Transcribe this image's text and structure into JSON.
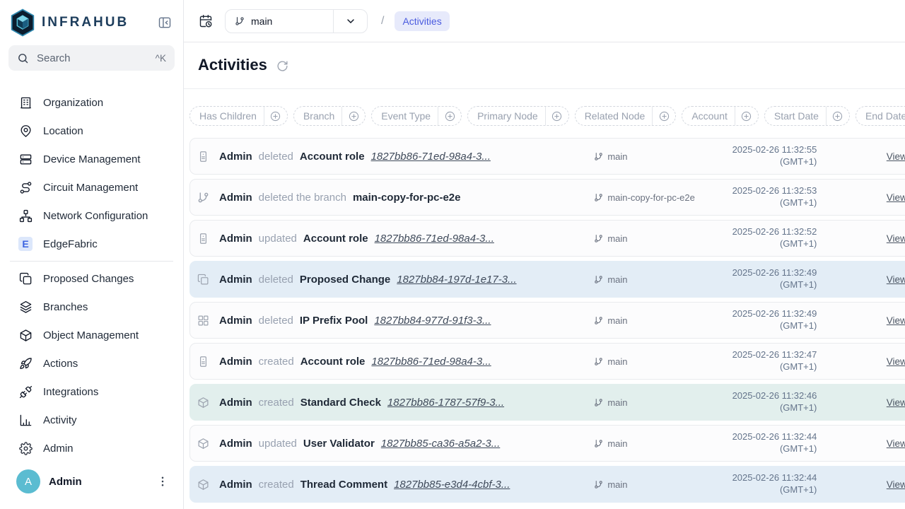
{
  "theme": {
    "accent_blue": "#4a5bdf",
    "crumb_bg": "#e7eafb",
    "highlight_blue": "#e3edf6",
    "highlight_teal": "#e2efed",
    "avatar_teal": "#5bbcd1",
    "logo_navy": "#1d3d5c"
  },
  "logo": "INFRAHUB",
  "search": {
    "placeholder": "Search",
    "shortcut": "^K"
  },
  "sidebar": {
    "primary_items": [
      {
        "icon": "building-icon",
        "label": "Organization"
      },
      {
        "icon": "map-pin-icon",
        "label": "Location"
      },
      {
        "icon": "server-icon",
        "label": "Device Management"
      },
      {
        "icon": "route-icon",
        "label": "Circuit Management"
      },
      {
        "icon": "network-icon",
        "label": "Network Configuration"
      },
      {
        "icon": "edgefabric-badge-icon",
        "label": "EdgeFabric",
        "badge": "E"
      }
    ],
    "secondary_items": [
      {
        "icon": "copy-icon",
        "label": "Proposed Changes"
      },
      {
        "icon": "layers-icon",
        "label": "Branches"
      },
      {
        "icon": "box-icon",
        "label": "Object Management"
      },
      {
        "icon": "rocket-icon",
        "label": "Actions"
      },
      {
        "icon": "plug-icon",
        "label": "Integrations"
      },
      {
        "icon": "bar-chart-icon",
        "label": "Activity"
      },
      {
        "icon": "gear-icon",
        "label": "Admin"
      }
    ]
  },
  "user": {
    "initial": "A",
    "name": "Admin"
  },
  "topbar": {
    "branch": "main",
    "breadcrumb": "Activities"
  },
  "page": {
    "title": "Activities"
  },
  "strings": {
    "view_more": "View more",
    "slash": "/"
  },
  "filters": [
    {
      "label": "Has Children"
    },
    {
      "label": "Branch"
    },
    {
      "label": "Event Type"
    },
    {
      "label": "Primary Node"
    },
    {
      "label": "Related Node"
    },
    {
      "label": "Account"
    },
    {
      "label": "Start Date"
    },
    {
      "label": "End Date"
    }
  ],
  "activities": [
    {
      "icon": "id-badge-icon",
      "actor": "Admin",
      "action": "deleted",
      "object_type": "Account role",
      "object_id": "1827bb86-71ed-98a4-3...",
      "branch": "main",
      "date": "2025-02-26 11:32:55",
      "tz": "(GMT+1)",
      "highlight": ""
    },
    {
      "icon": "git-branch-icon",
      "actor": "Admin",
      "action": "deleted the branch",
      "object_type": "main-copy-for-pc-e2e",
      "object_id": "",
      "branch": "main-copy-for-pc-e2e",
      "date": "2025-02-26 11:32:53",
      "tz": "(GMT+1)",
      "highlight": ""
    },
    {
      "icon": "id-badge-icon",
      "actor": "Admin",
      "action": "updated",
      "object_type": "Account role",
      "object_id": "1827bb86-71ed-98a4-3...",
      "branch": "main",
      "date": "2025-02-26 11:32:52",
      "tz": "(GMT+1)",
      "highlight": ""
    },
    {
      "icon": "copy-icon",
      "actor": "Admin",
      "action": "deleted",
      "object_type": "Proposed Change",
      "object_id": "1827bb84-197d-1e17-3...",
      "branch": "main",
      "date": "2025-02-26 11:32:49",
      "tz": "(GMT+1)",
      "highlight": "blue"
    },
    {
      "icon": "grid-icon",
      "actor": "Admin",
      "action": "deleted",
      "object_type": "IP Prefix Pool",
      "object_id": "1827bb84-977d-91f3-3...",
      "branch": "main",
      "date": "2025-02-26 11:32:49",
      "tz": "(GMT+1)",
      "highlight": ""
    },
    {
      "icon": "id-badge-icon",
      "actor": "Admin",
      "action": "created",
      "object_type": "Account role",
      "object_id": "1827bb86-71ed-98a4-3...",
      "branch": "main",
      "date": "2025-02-26 11:32:47",
      "tz": "(GMT+1)",
      "highlight": ""
    },
    {
      "icon": "box-icon",
      "actor": "Admin",
      "action": "created",
      "object_type": "Standard Check",
      "object_id": "1827bb86-1787-57f9-3...",
      "branch": "main",
      "date": "2025-02-26 11:32:46",
      "tz": "(GMT+1)",
      "highlight": "teal"
    },
    {
      "icon": "box-icon",
      "actor": "Admin",
      "action": "updated",
      "object_type": "User Validator",
      "object_id": "1827bb85-ca36-a5a2-3...",
      "branch": "main",
      "date": "2025-02-26 11:32:44",
      "tz": "(GMT+1)",
      "highlight": ""
    },
    {
      "icon": "box-icon",
      "actor": "Admin",
      "action": "created",
      "object_type": "Thread Comment",
      "object_id": "1827bb85-e3d4-4cbf-3...",
      "branch": "main",
      "date": "2025-02-26 11:32:44",
      "tz": "(GMT+1)",
      "highlight": "blue"
    }
  ]
}
